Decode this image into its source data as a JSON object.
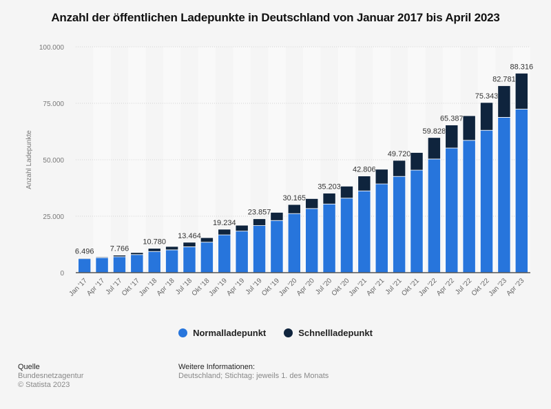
{
  "title": "Anzahl der öffentlichen Ladepunkte in Deutschland von Januar 2017 bis April 2023",
  "legend": [
    {
      "label": "Normalladepunkt",
      "color": "#2775dc"
    },
    {
      "label": "Schnellladepunkt",
      "color": "#0f243d"
    }
  ],
  "footer": {
    "source_title": "Quelle",
    "source_lines": [
      "Bundesnetzagentur",
      "© Statista 2023"
    ],
    "info_title": "Weitere Informationen:",
    "info_text": "Deutschland; Stichtag: jeweils 1. des Monats"
  },
  "chart_data": {
    "type": "bar",
    "stacked": true,
    "title": "Anzahl der öffentlichen Ladepunkte in Deutschland von Januar 2017 bis April 2023",
    "xlabel": "",
    "ylabel": "Anzahl Ladepunkte",
    "ylim": [
      0,
      100000
    ],
    "yticks": [
      0,
      25000,
      50000,
      75000,
      100000
    ],
    "ytick_labels": [
      "0",
      "25.000",
      "50.000",
      "75.000",
      "100.000"
    ],
    "grid": true,
    "legend_position": "bottom",
    "categories": [
      "Jan '17",
      "Apr '17",
      "Jul '17",
      "Okt '17",
      "Jan '18",
      "Apr '18",
      "Jul '18",
      "Okt '18",
      "Jan '19",
      "Apr '19",
      "Jul '19",
      "Okt '19",
      "Jan '20",
      "Apr '20",
      "Jul '20",
      "Okt '20",
      "Jan '21",
      "Apr '21",
      "Jul '21",
      "Okt '21",
      "Jan '22",
      "Apr '22",
      "Jul '22",
      "Okt '22",
      "Jan '23",
      "Apr '23"
    ],
    "series": [
      {
        "name": "Normalladepunkt",
        "color": "#2775dc",
        "values": [
          6196,
          6650,
          7066,
          8000,
          9380,
          10100,
          11464,
          13500,
          16734,
          18400,
          20857,
          23100,
          26165,
          28400,
          30403,
          33000,
          36206,
          39300,
          42620,
          45400,
          50328,
          55187,
          58600,
          63043,
          68781,
          72416
        ]
      },
      {
        "name": "Schnellladepunkt",
        "color": "#0f243d",
        "values": [
          300,
          350,
          700,
          900,
          1400,
          1500,
          2000,
          2000,
          2500,
          2600,
          3000,
          3600,
          4000,
          4400,
          4800,
          5300,
          6600,
          6500,
          7100,
          7800,
          9500,
          10200,
          10900,
          12300,
          14000,
          15900
        ]
      }
    ],
    "totals": [
      6496,
      7000,
      7766,
      8900,
      10780,
      11600,
      13464,
      15500,
      19234,
      21000,
      23857,
      26700,
      30165,
      32800,
      35203,
      38300,
      42806,
      45800,
      49720,
      53200,
      59828,
      65387,
      69500,
      75343,
      82781,
      88316
    ],
    "data_labels": [
      "6.496",
      "",
      "7.766",
      "",
      "10.780",
      "",
      "13.464",
      "",
      "19.234",
      "",
      "23.857",
      "",
      "30.165",
      "",
      "35.203",
      "",
      "42.806",
      "",
      "49.720",
      "",
      "59.828",
      "65.387",
      "",
      "75.343",
      "82.781",
      "88.316"
    ]
  }
}
